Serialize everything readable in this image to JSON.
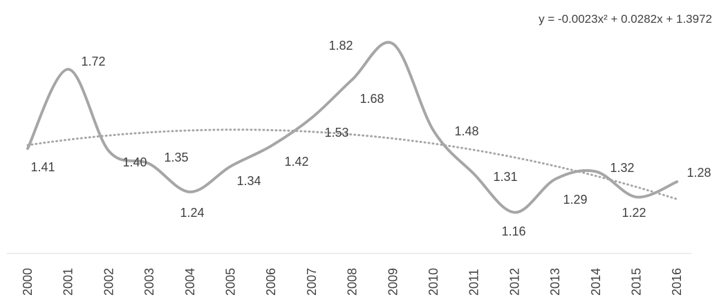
{
  "chart_data": {
    "type": "line",
    "title": "",
    "xlabel": "",
    "ylabel": "",
    "x": [
      "2000",
      "2001",
      "2002",
      "2003",
      "2004",
      "2005",
      "2006",
      "2007",
      "2008",
      "2009",
      "2010",
      "2011",
      "2012",
      "2013",
      "2014",
      "2015",
      "2016"
    ],
    "series": [
      {
        "values": [
          1.41,
          1.72,
          1.4,
          1.35,
          1.24,
          1.34,
          1.42,
          1.53,
          1.68,
          1.82,
          1.48,
          1.31,
          1.16,
          1.29,
          1.32,
          1.22,
          1.28
        ],
        "labels": [
          "1.41",
          "1.72",
          "1.40",
          "1.35",
          "1.24",
          "1.34",
          "1.42",
          "1.53",
          "1.68",
          "1.82",
          "1.48",
          "1.31",
          "1.16",
          "1.29",
          "1.32",
          "1.22",
          "1.28"
        ],
        "color": "#a6a6a6",
        "smooth": true
      }
    ],
    "trendline": {
      "type": "polynomial",
      "order": 2,
      "equation": "y = -0.0023x² + 0.0282x + 1.3972",
      "coefficients": [
        -0.0023,
        0.0282,
        1.3972
      ],
      "style": "dotted",
      "color": "#a6a6a6"
    },
    "grid": false,
    "legend": "none",
    "y_axis_visible": false,
    "x_tick_rotation": -90
  }
}
